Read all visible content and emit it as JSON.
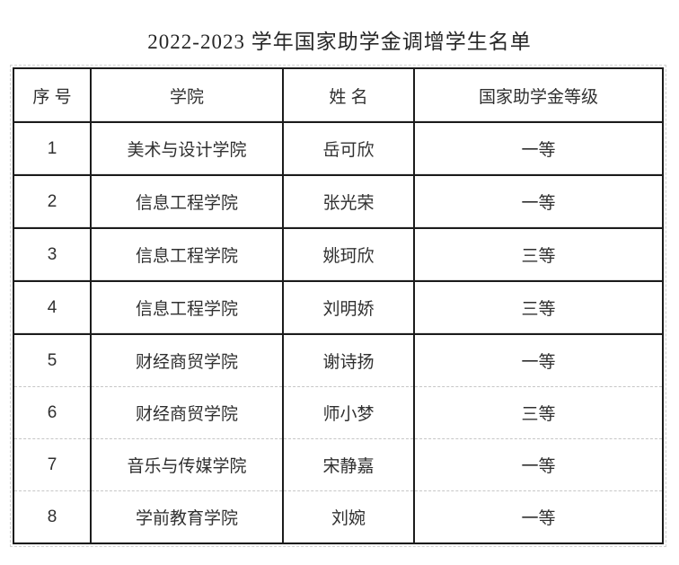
{
  "title": "2022-2023 学年国家助学金调增学生名单",
  "table": {
    "headers": [
      "序 号",
      "学院",
      "姓 名",
      "国家助学金等级"
    ],
    "rows": [
      [
        "1",
        "美术与设计学院",
        "岳可欣",
        "一等"
      ],
      [
        "2",
        "信息工程学院",
        "张光荣",
        "一等"
      ],
      [
        "3",
        "信息工程学院",
        "姚珂欣",
        "三等"
      ],
      [
        "4",
        "信息工程学院",
        "刘明娇",
        "三等"
      ],
      [
        "5",
        "财经商贸学院",
        "谢诗扬",
        "一等"
      ],
      [
        "6",
        "财经商贸学院",
        "师小梦",
        "三等"
      ],
      [
        "7",
        "音乐与传媒学院",
        "宋静嘉",
        "一等"
      ],
      [
        "8",
        "学前教育学院",
        "刘婉",
        "一等"
      ]
    ]
  },
  "colors": {
    "border": "#1c1c1c",
    "soft_border": "#c6c6c6",
    "text": "#303030",
    "title_text": "#272727",
    "background": "#ffffff"
  }
}
